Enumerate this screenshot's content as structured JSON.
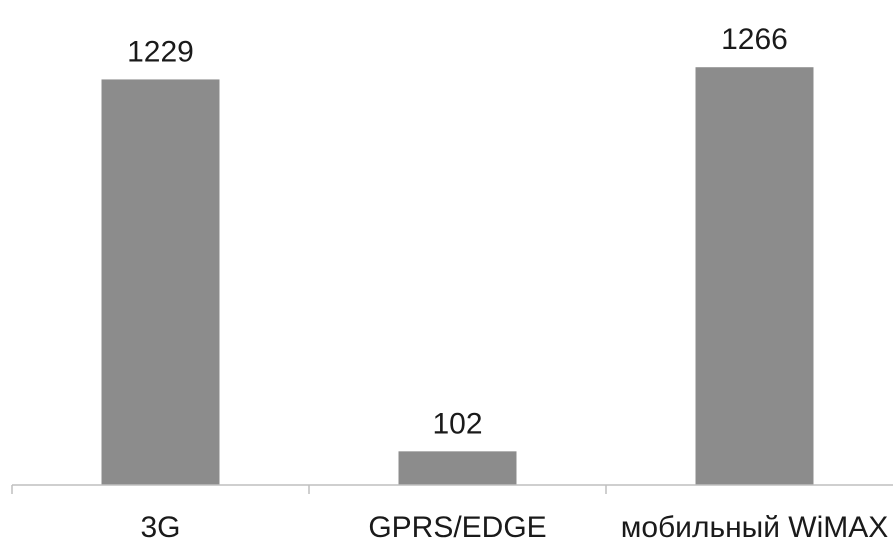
{
  "chart_data": {
    "type": "bar",
    "categories": [
      "3G",
      "GPRS/EDGE",
      "мобильный WiMAX"
    ],
    "values": [
      1229,
      102,
      1266
    ],
    "data_labels": [
      "1229",
      "102",
      "1266"
    ],
    "title": "",
    "xlabel": "",
    "ylabel": "",
    "ylim": [
      0,
      1400
    ],
    "grid": false,
    "legend": "none",
    "bar_color": "#8c8c8c",
    "axis_color": "#bfbfbf"
  }
}
